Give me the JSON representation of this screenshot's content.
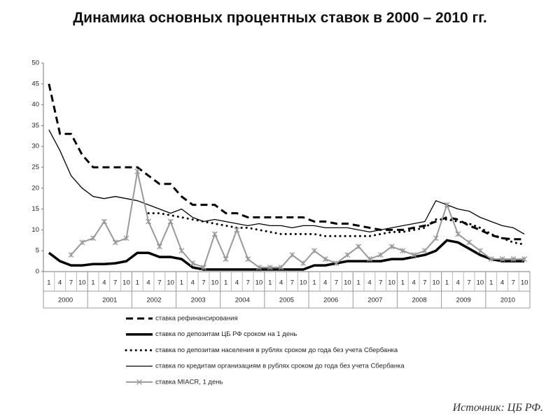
{
  "chart_data": {
    "type": "line",
    "title": "Динамика основных процентных ставок в 2000 – 2010 гг.",
    "source": "Источник: ЦБ РФ.",
    "categories": [
      "1",
      "4",
      "7",
      "10",
      "1",
      "4",
      "7",
      "10",
      "1",
      "4",
      "7",
      "10",
      "1",
      "4",
      "7",
      "10",
      "1",
      "4",
      "7",
      "10",
      "1",
      "4",
      "7",
      "10",
      "1",
      "4",
      "7",
      "10",
      "1",
      "4",
      "7",
      "10",
      "1",
      "4",
      "7",
      "10",
      "1",
      "4",
      "7",
      "10",
      "1",
      "4",
      "7",
      "10"
    ],
    "years": [
      "2000",
      "2001",
      "2002",
      "2003",
      "2004",
      "2005",
      "2006",
      "2007",
      "2008",
      "2009",
      "2010"
    ],
    "ylim": [
      0,
      50
    ],
    "yticks": [
      0,
      5,
      10,
      15,
      20,
      25,
      30,
      35,
      40,
      45,
      50
    ],
    "series": [
      {
        "name": "ставка рефинансирования",
        "color": "#000000",
        "line_style": "dashed",
        "line_width": 3,
        "values": [
          45,
          33,
          33,
          28,
          25,
          25,
          25,
          25,
          25,
          23,
          21,
          21,
          18,
          16,
          16,
          16,
          14,
          14,
          13,
          13,
          13,
          13,
          13,
          13,
          12,
          12,
          11.5,
          11.5,
          11,
          10.5,
          10,
          10,
          10,
          10.5,
          11,
          12,
          13,
          12.5,
          11,
          10,
          8.75,
          8,
          7.75,
          7.75
        ]
      },
      {
        "name": "ставка по депозитам ЦБ РФ сроком на 1 день",
        "color": "#000000",
        "line_style": "solid",
        "line_width": 3.5,
        "values": [
          4.5,
          2.5,
          1.5,
          1.5,
          1.8,
          1.8,
          2,
          2.5,
          4.5,
          4.5,
          3.5,
          3.5,
          3,
          1,
          0.5,
          0.5,
          0.5,
          0.5,
          0.5,
          0.5,
          0.5,
          0.5,
          0.5,
          0.5,
          1.5,
          1.5,
          2,
          2.5,
          2.5,
          2.5,
          2.5,
          3,
          3,
          3.5,
          4,
          5,
          7.5,
          7,
          5.5,
          4,
          3,
          2.5,
          2.5,
          2.5
        ]
      },
      {
        "name": "ставка по депозитам населения в рублях сроком до года без учета Сбербанка",
        "color": "#000000",
        "line_style": "dotted",
        "line_width": 3,
        "values": [
          null,
          null,
          null,
          null,
          null,
          null,
          null,
          null,
          null,
          14,
          14,
          13.5,
          13,
          12.5,
          12,
          11.5,
          11,
          10.5,
          10.5,
          10,
          9.5,
          9,
          9,
          9,
          9,
          8.5,
          8.5,
          8.5,
          8.5,
          8.5,
          9,
          9.5,
          9.5,
          10,
          10.5,
          12.5,
          12.5,
          12,
          11.5,
          10.5,
          9,
          8,
          7,
          6.5
        ]
      },
      {
        "name": "ставка по кредитам организациям в рублях сроком до года без учета Сбербанка",
        "color": "#000000",
        "line_style": "solid",
        "line_width": 1.3,
        "values": [
          34,
          29,
          23,
          20,
          18,
          17.5,
          18,
          17.5,
          17,
          16,
          15,
          14,
          15,
          13,
          12,
          12.5,
          12,
          11.5,
          11,
          11.5,
          11,
          11,
          10.5,
          11,
          11,
          10.5,
          10.5,
          10.5,
          10,
          9.5,
          10,
          10.5,
          11,
          11.5,
          12,
          17,
          16,
          15,
          14.5,
          13,
          12,
          11,
          10.5,
          9
        ]
      },
      {
        "name": "ставка MIACR, 1 день",
        "color": "#999999",
        "line_style": "solid",
        "line_width": 2,
        "marker": "x",
        "values": [
          null,
          null,
          4,
          7,
          8,
          12,
          7,
          8,
          24,
          12,
          6,
          12,
          5,
          2,
          1,
          9,
          3,
          10,
          3,
          1,
          1,
          1,
          4,
          2,
          5,
          3,
          2,
          4,
          6,
          3,
          4,
          6,
          5,
          4,
          5,
          8,
          16,
          9,
          7,
          5,
          3,
          3,
          3,
          3
        ]
      }
    ]
  }
}
